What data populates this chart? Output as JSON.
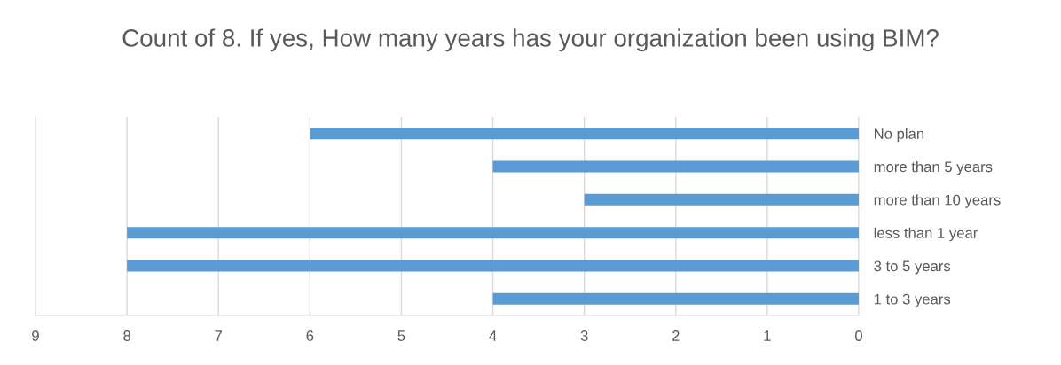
{
  "chart_data": {
    "type": "bar",
    "orientation": "horizontal",
    "title": "Count of 8. If yes, How many years has your organization been using BIM?",
    "categories": [
      "No plan",
      "more than 5 years",
      "more than 10 years",
      "less than 1 year",
      "3 to 5 years",
      "1 to 3 years"
    ],
    "values": [
      6,
      4,
      3,
      8,
      8,
      4
    ],
    "color": "#5b9bd5",
    "xlim": [
      9,
      0
    ],
    "xticks": [
      9,
      8,
      7,
      6,
      5,
      4,
      3,
      2,
      1,
      0
    ],
    "grid": "x"
  }
}
